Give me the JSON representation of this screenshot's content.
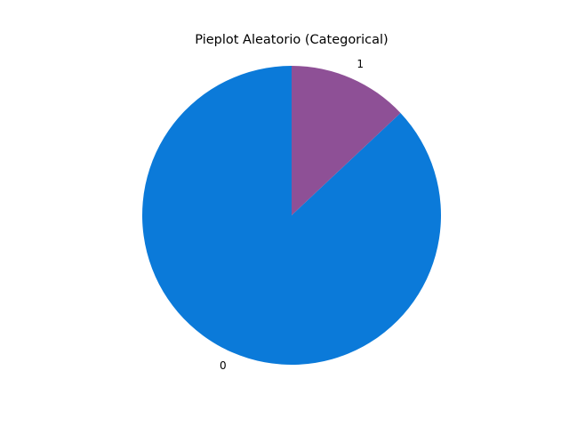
{
  "chart_data": {
    "type": "pie",
    "title": "Pieplot Aleatorio (Categorical)",
    "labels": [
      "0",
      "1"
    ],
    "values": [
      87,
      13
    ],
    "colors": [
      "#0b7ad9",
      "#8e5096"
    ],
    "start_angle_deg": 90,
    "direction": "counterclockwise"
  }
}
